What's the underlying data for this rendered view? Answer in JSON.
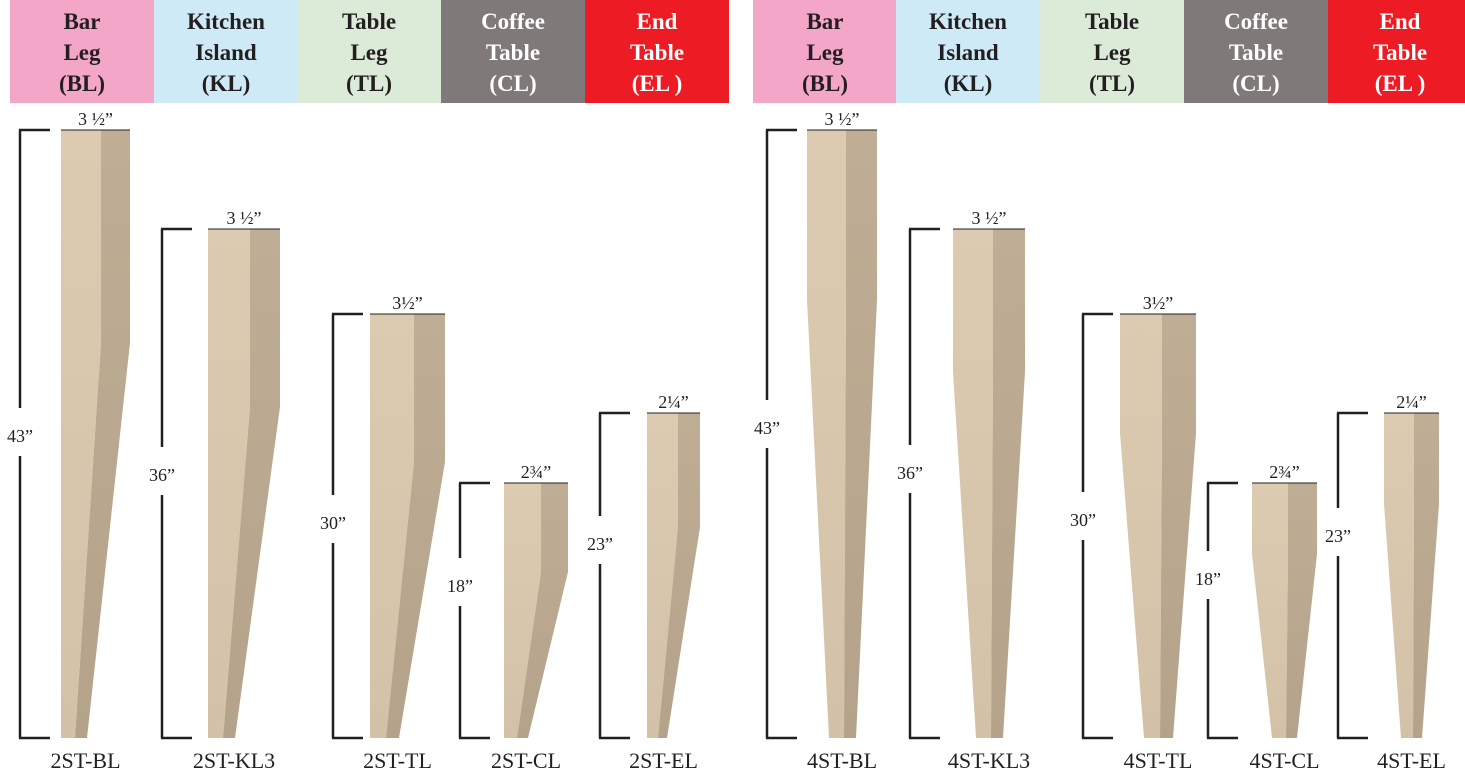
{
  "headers": [
    {
      "label": "Bar\nLeg\n(BL)",
      "color": "#f4a6c9",
      "text_color": "#231f20"
    },
    {
      "label": "Kitchen\nIsland\n(KL)",
      "color": "#cfeaf7",
      "text_color": "#231f20"
    },
    {
      "label": "Table\nLeg\n(TL)",
      "color": "#dcead8",
      "text_color": "#231f20"
    },
    {
      "label": "Coffee\nTable\n(CL)",
      "color": "#80797a",
      "text_color": "#ffffff"
    },
    {
      "label": "End\nTable\n(EL )",
      "color": "#ed1c24",
      "text_color": "#ffffff"
    },
    {
      "label": "Bar\nLeg\n(BL)",
      "color": "#f4a6c9",
      "text_color": "#231f20"
    },
    {
      "label": "Kitchen\nIsland\n(KL)",
      "color": "#cfeaf7",
      "text_color": "#231f20"
    },
    {
      "label": "Table\nLeg\n(TL)",
      "color": "#dcead8",
      "text_color": "#231f20"
    },
    {
      "label": "Coffee\nTable\n(CL)",
      "color": "#80797a",
      "text_color": "#ffffff"
    },
    {
      "label": "End\nTable\n(EL )",
      "color": "#ed1c24",
      "text_color": "#ffffff"
    }
  ],
  "legs": [
    {
      "code": "2ST-BL",
      "height_label": "43”",
      "width_label": "3 ½”",
      "height_in": 43,
      "style": "2-side taper"
    },
    {
      "code": "2ST-KL3",
      "height_label": "36”",
      "width_label": "3 ½”",
      "height_in": 36,
      "style": "2-side taper"
    },
    {
      "code": "2ST-TL",
      "height_label": "30”",
      "width_label": "3½”",
      "height_in": 30,
      "style": "2-side taper"
    },
    {
      "code": "2ST-CL",
      "height_label": "18”",
      "width_label": "2¾”",
      "height_in": 18,
      "style": "2-side taper"
    },
    {
      "code": "2ST-EL",
      "height_label": "23”",
      "width_label": "2¼”",
      "height_in": 23,
      "style": "2-side taper"
    },
    {
      "code": "4ST-BL",
      "height_label": "43”",
      "width_label": "3 ½”",
      "height_in": 43,
      "style": "4-side taper"
    },
    {
      "code": "4ST-KL3",
      "height_label": "36”",
      "width_label": "3 ½”",
      "height_in": 36,
      "style": "4-side taper"
    },
    {
      "code": "4ST-TL",
      "height_label": "30”",
      "width_label": "3½”",
      "height_in": 30,
      "style": "4-side taper"
    },
    {
      "code": "4ST-CL",
      "height_label": "18”",
      "width_label": "2¾”",
      "height_in": 18,
      "style": "4-side taper"
    },
    {
      "code": "4ST-EL",
      "height_label": "23”",
      "width_label": "2¼”",
      "height_in": 23,
      "style": "4-side taper"
    }
  ],
  "colors": {
    "wood_light": "#d9c8ae",
    "wood_dark": "#b9a88f",
    "dimension_line": "#231f20"
  }
}
